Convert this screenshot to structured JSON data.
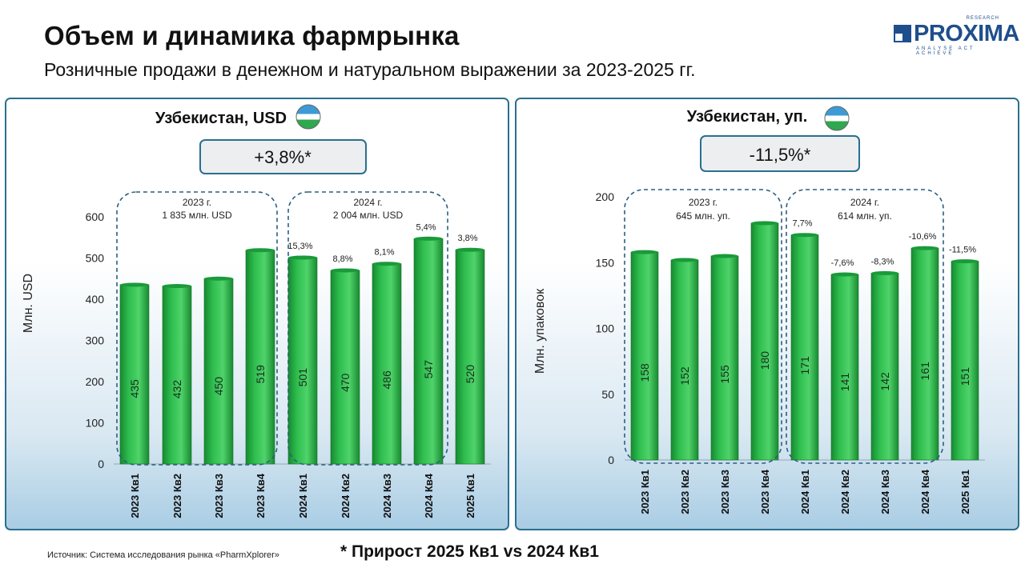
{
  "header": {
    "title": "Объем и динамика фармрынка",
    "subtitle": "Розничные продажи  в денежном и натуральном выражении за 2023-2025 гг."
  },
  "logo": {
    "name": "PROXIMA",
    "research": "RESEARCH",
    "tagline": "ANALYSE ACT ACHIEVE",
    "color": "#1f4e8c"
  },
  "footer": {
    "source": "Источник: Система исследования рынка «PharmXplorer»",
    "note": "* Прирост 2025 Кв1  vs  2024 Кв1"
  },
  "colors": {
    "bar": "#2ebd4e",
    "bar_dark": "#178a30",
    "panel_border": "#2a6f8f",
    "group_border": "#2a5e80"
  },
  "chart_data": [
    {
      "type": "bar",
      "title": "Узбекистан, USD",
      "growth_badge": "+3,8%*",
      "ylabel": "Млн. USD",
      "ylim": [
        0,
        600
      ],
      "yticks": [
        0,
        100,
        200,
        300,
        400,
        500,
        600
      ],
      "categories": [
        "2023 Кв1",
        "2023 Кв2",
        "2023 Кв3",
        "2023 Кв4",
        "2024 Кв1",
        "2024 Кв2",
        "2024 Кв3",
        "2024 Кв4",
        "2025 Кв1"
      ],
      "values": [
        435,
        432,
        450,
        519,
        501,
        470,
        486,
        547,
        520
      ],
      "value_labels": [
        "435",
        "432",
        "450",
        "519",
        "501",
        "470",
        "486",
        "547",
        "520"
      ],
      "growth_labels": [
        "",
        "",
        "",
        "",
        "15,3%",
        "8,8%",
        "8,1%",
        "5,4%",
        "3,8%"
      ],
      "groups": [
        {
          "label_year": "2023 г.",
          "label_total": "1 835 млн. USD",
          "from": 0,
          "to": 3
        },
        {
          "label_year": "2024 г.",
          "label_total": "2 004 млн. USD",
          "from": 4,
          "to": 7
        }
      ],
      "grid": false
    },
    {
      "type": "bar",
      "title": "Узбекистан, уп.",
      "growth_badge": "-11,5%*",
      "ylabel": "Млн. упаковок",
      "ylim": [
        0,
        200
      ],
      "yticks": [
        0,
        50,
        100,
        150,
        200
      ],
      "categories": [
        "2023 Кв1",
        "2023 Кв2",
        "2023 Кв3",
        "2023 Кв4",
        "2024 Кв1",
        "2024 Кв2",
        "2024 Кв3",
        "2024 Кв4",
        "2025 Кв1"
      ],
      "values": [
        158,
        152,
        155,
        180,
        171,
        141,
        142,
        161,
        151
      ],
      "value_labels": [
        "158",
        "152",
        "155",
        "180",
        "171",
        "141",
        "142",
        "161",
        "151"
      ],
      "growth_labels": [
        "",
        "",
        "",
        "",
        "7,7%",
        "-7,6%",
        "-8,3%",
        "-10,6%",
        "-11,5%"
      ],
      "groups": [
        {
          "label_year": "2023 г.",
          "label_total": "645 млн. уп.",
          "from": 0,
          "to": 3
        },
        {
          "label_year": "2024 г.",
          "label_total": "614 млн. уп.",
          "from": 4,
          "to": 7
        }
      ],
      "grid": false
    }
  ]
}
